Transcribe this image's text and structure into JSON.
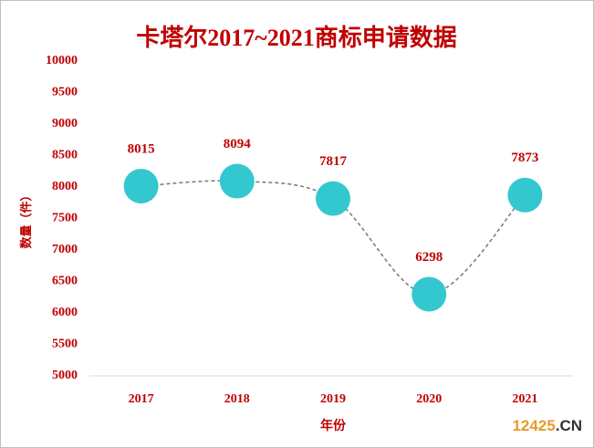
{
  "chart_data": {
    "type": "line",
    "title": "卡塔尔2017~2021商标申请数据",
    "x_label": "年份",
    "y_label": "数量（件）",
    "categories": [
      "2017",
      "2018",
      "2019",
      "2020",
      "2021"
    ],
    "series": [
      {
        "name": "数量",
        "color": "#33c8cf",
        "values": [
          8015,
          8094,
          7817,
          6298,
          7873
        ]
      }
    ],
    "ylim": [
      5000,
      10000
    ],
    "yticks": [
      5000,
      5500,
      6000,
      6500,
      7000,
      7500,
      8000,
      8500,
      9000,
      9500,
      10000
    ],
    "line_color": "#777777",
    "smooth": true,
    "watermark": [
      "12425",
      ".CN"
    ]
  }
}
